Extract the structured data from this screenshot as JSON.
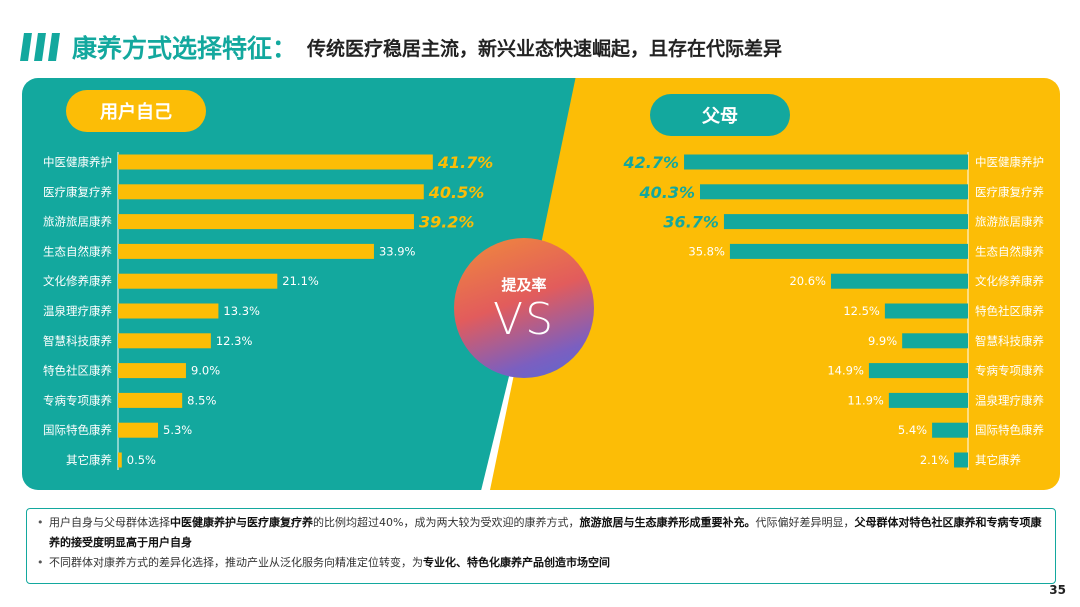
{
  "header": {
    "title_main": "康养方式选择特征：",
    "title_sub": "传统医疗稳居主流，新兴业态快速崛起，且存在代际差异"
  },
  "colors": {
    "teal": "#13a89e",
    "yellow": "#fcbd06"
  },
  "vs": {
    "label": "提及率",
    "text": "VS"
  },
  "chart_data": [
    {
      "type": "bar",
      "title": "用户自己",
      "orientation": "horizontal",
      "categories": [
        "中医健康养护",
        "医疗康复疗养",
        "旅游旅居康养",
        "生态自然康养",
        "文化修养康养",
        "温泉理疗康养",
        "智慧科技康养",
        "特色社区康养",
        "专病专项康养",
        "国际特色康养",
        "其它康养"
      ],
      "values": [
        41.7,
        40.5,
        39.2,
        33.9,
        21.1,
        13.3,
        12.3,
        9.0,
        8.5,
        5.3,
        0.5
      ],
      "labels": [
        "41.7%",
        "40.5%",
        "39.2%",
        "33.9%",
        "21.1%",
        "13.3%",
        "12.3%",
        "9.0%",
        "8.5%",
        "5.3%",
        "0.5%"
      ],
      "unit": "%"
    },
    {
      "type": "bar",
      "title": "父母",
      "orientation": "horizontal",
      "categories": [
        "中医健康养护",
        "医疗康复疗养",
        "旅游旅居康养",
        "生态自然康养",
        "文化修养康养",
        "特色社区康养",
        "智慧科技康养",
        "专病专项康养",
        "温泉理疗康养",
        "国际特色康养",
        "其它康养"
      ],
      "values": [
        42.7,
        40.3,
        36.7,
        35.8,
        20.6,
        12.5,
        9.9,
        14.9,
        11.9,
        5.4,
        2.1
      ],
      "labels": [
        "42.7%",
        "40.3%",
        "36.7%",
        "35.8%",
        "20.6%",
        "12.5%",
        "9.9%",
        "14.9%",
        "11.9%",
        "5.4%",
        "2.1%"
      ],
      "unit": "%"
    }
  ],
  "notes": [
    {
      "parts": [
        {
          "t": "用户自身与父母群体选择",
          "b": false
        },
        {
          "t": "中医健康养护与医疗康复疗养",
          "b": true
        },
        {
          "t": "的比例均超过40%，成为两大较为受欢迎的康养方式，",
          "b": false
        },
        {
          "t": "旅游旅居与生态康养形成重要补充。",
          "b": true
        },
        {
          "t": "代际偏好差异明显，",
          "b": false
        },
        {
          "t": "父母群体对特色社区康养和专病专项康养的接受度明显高于用户自身",
          "b": true
        }
      ]
    },
    {
      "parts": [
        {
          "t": "不同群体对康养方式的差异化选择，推动产业从泛化服务向精准定位转变，为",
          "b": false
        },
        {
          "t": "专业化、特色化康养产品创造市场空间",
          "b": true
        }
      ]
    }
  ],
  "page_number": "35"
}
